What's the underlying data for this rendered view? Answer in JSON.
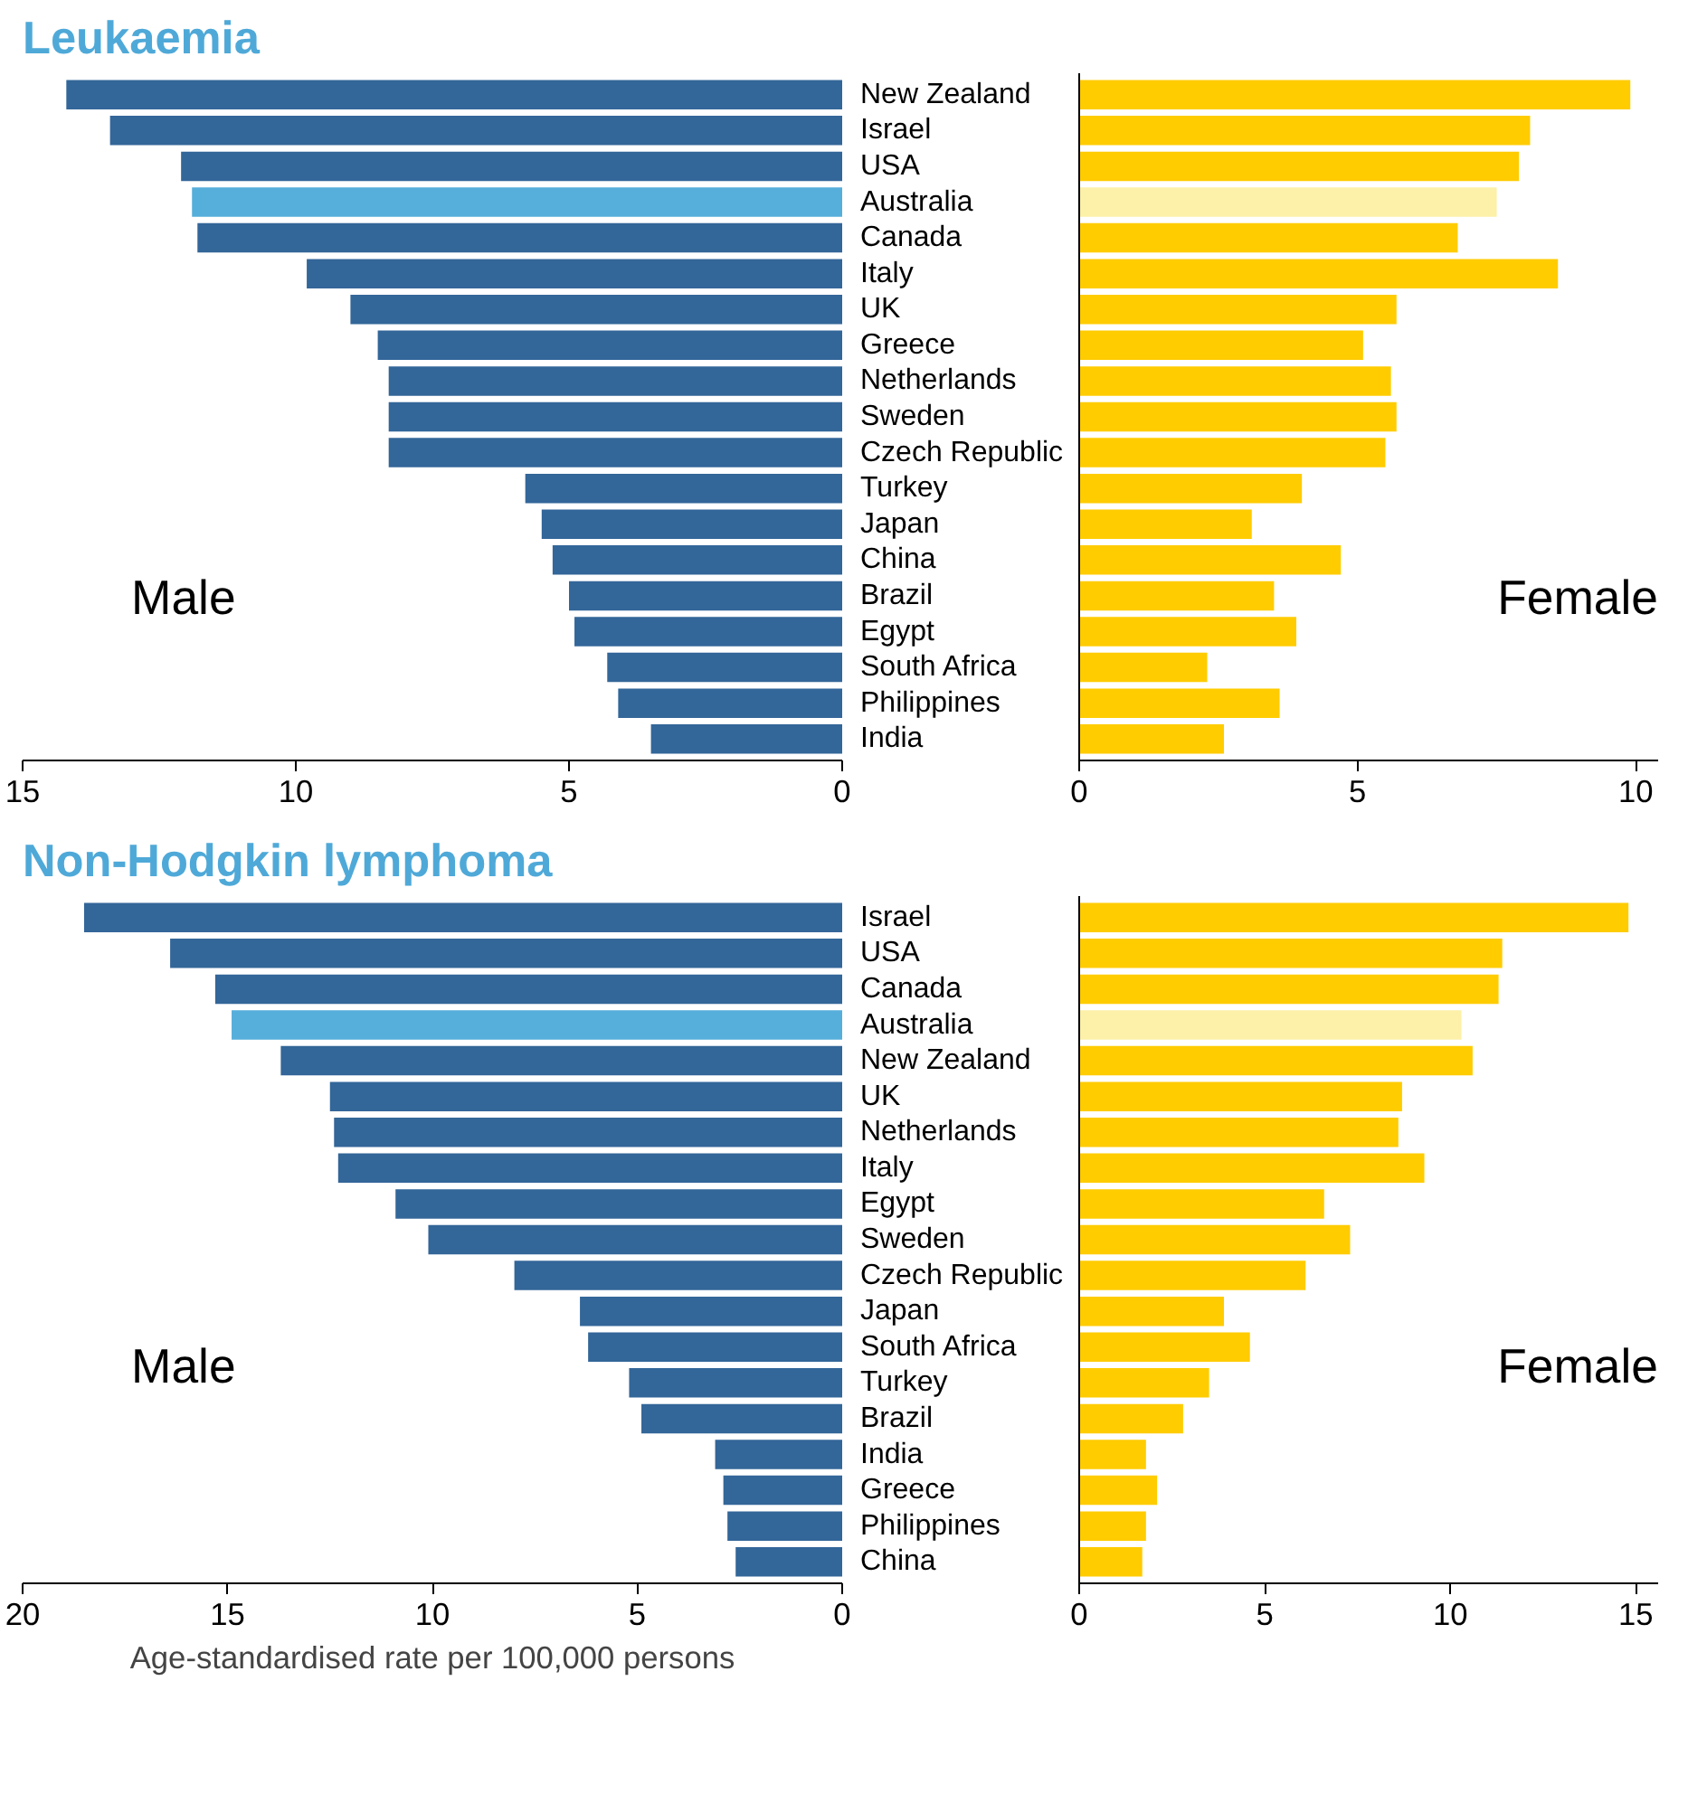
{
  "chart_data": [
    {
      "type": "bar",
      "orientation": "horizontal",
      "title": "Leukaemia",
      "categories": [
        "New Zealand",
        "Israel",
        "USA",
        "Australia",
        "Canada",
        "Italy",
        "UK",
        "Greece",
        "Netherlands",
        "Sweden",
        "Czech Republic",
        "Turkey",
        "Japan",
        "China",
        "Brazil",
        "Egypt",
        "South Africa",
        "Philippines",
        "India"
      ],
      "values": [
        14.2,
        13.4,
        12.1,
        11.9,
        11.8,
        9.8,
        9.0,
        8.5,
        8.3,
        8.3,
        8.3,
        5.8,
        5.5,
        5.3,
        5.0,
        4.9,
        4.3,
        4.1,
        3.5
      ],
      "colors": [
        "#336699",
        "#336699",
        "#336699",
        "#56aedb",
        "#336699",
        "#336699",
        "#336699",
        "#336699",
        "#336699",
        "#336699",
        "#336699",
        "#336699",
        "#336699",
        "#336699",
        "#336699",
        "#336699",
        "#336699",
        "#336699",
        "#336699"
      ],
      "xlim": [
        15,
        0
      ],
      "xticks": [
        15,
        10,
        5,
        0
      ],
      "annotations": [
        "Male"
      ]
    },
    {
      "type": "bar",
      "orientation": "horizontal",
      "categories": [
        null,
        null,
        null,
        null,
        null,
        null,
        null,
        null,
        null,
        null,
        null,
        null,
        null,
        null,
        null,
        null,
        null,
        null,
        null
      ],
      "values": [
        9.9,
        8.1,
        7.9,
        7.5,
        6.8,
        8.6,
        5.7,
        5.1,
        5.6,
        5.7,
        5.5,
        4.0,
        3.1,
        4.7,
        3.5,
        3.9,
        2.3,
        3.6,
        2.6
      ],
      "colors": [
        "#ffcc00",
        "#ffcc00",
        "#ffcc00",
        "#fdf0a8",
        "#ffcc00",
        "#ffcc00",
        "#ffcc00",
        "#ffcc00",
        "#ffcc00",
        "#ffcc00",
        "#ffcc00",
        "#ffcc00",
        "#ffcc00",
        "#ffcc00",
        "#ffcc00",
        "#ffcc00",
        "#ffcc00",
        "#ffcc00",
        "#ffcc00"
      ],
      "xlim": [
        0,
        10.4
      ],
      "xticks": [
        0,
        5,
        10
      ],
      "tick_labels": "x",
      "annotations": [
        "Female"
      ]
    },
    {
      "type": "bar",
      "orientation": "horizontal",
      "title": "Non-Hodgkin lymphoma",
      "categories": [
        "Israel",
        "USA",
        "Canada",
        "Australia",
        "New Zealand",
        "UK",
        "Netherlands",
        "Italy",
        "Egypt",
        "Sweden",
        "Czech Republic",
        "Japan",
        "South Africa",
        "Turkey",
        "Brazil",
        "India",
        "Greece",
        "Philippines",
        "China"
      ],
      "values": [
        18.5,
        16.4,
        15.3,
        14.9,
        13.7,
        12.5,
        12.4,
        12.3,
        10.9,
        10.1,
        8.0,
        6.4,
        6.2,
        5.2,
        4.9,
        3.1,
        2.9,
        2.8,
        2.6
      ],
      "colors": [
        "#336699",
        "#336699",
        "#336699",
        "#56aedb",
        "#336699",
        "#336699",
        "#336699",
        "#336699",
        "#336699",
        "#336699",
        "#336699",
        "#336699",
        "#336699",
        "#336699",
        "#336699",
        "#336699",
        "#336699",
        "#336699",
        "#336699"
      ],
      "xlim": [
        20,
        0
      ],
      "xticks": [
        20,
        15,
        10,
        5,
        0
      ],
      "xlabel": "Age-standardised rate per 100,000 persons",
      "annotations": [
        "Male"
      ]
    },
    {
      "type": "bar",
      "orientation": "horizontal",
      "categories": [
        null,
        null,
        null,
        null,
        null,
        null,
        null,
        null,
        null,
        null,
        null,
        null,
        null,
        null,
        null,
        null,
        null,
        null,
        null
      ],
      "values": [
        14.8,
        11.4,
        11.3,
        10.3,
        10.6,
        8.7,
        8.6,
        9.3,
        6.6,
        7.3,
        6.1,
        3.9,
        4.6,
        3.5,
        2.8,
        1.8,
        2.1,
        1.8,
        1.7
      ],
      "colors": [
        "#ffcc00",
        "#ffcc00",
        "#ffcc00",
        "#fdf0a8",
        "#ffcc00",
        "#ffcc00",
        "#ffcc00",
        "#ffcc00",
        "#ffcc00",
        "#ffcc00",
        "#ffcc00",
        "#ffcc00",
        "#ffcc00",
        "#ffcc00",
        "#ffcc00",
        "#ffcc00",
        "#ffcc00",
        "#ffcc00",
        "#ffcc00"
      ],
      "xlim": [
        0,
        15.6
      ],
      "xticks": [
        0,
        5,
        10,
        15
      ],
      "tick_labels": "x",
      "annotations": [
        "Female"
      ]
    }
  ]
}
